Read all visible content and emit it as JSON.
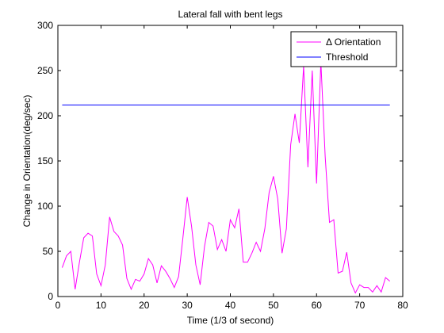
{
  "chart_data": {
    "type": "line",
    "title": "Lateral fall with bent legs",
    "xlabel": "Time (1/3 of second)",
    "ylabel": "Change in Orientation(deg/sec)",
    "xlim": [
      0,
      80
    ],
    "ylim": [
      0,
      300
    ],
    "xticks": [
      "0",
      "10",
      "20",
      "30",
      "40",
      "50",
      "60",
      "70",
      "80"
    ],
    "yticks": [
      "0",
      "50",
      "100",
      "150",
      "200",
      "250",
      "300"
    ],
    "legend_position": "top-right",
    "grid": false,
    "series": [
      {
        "name": "Δ Orientation",
        "color": "#ff00ff",
        "x": [
          1,
          2,
          3,
          4,
          5,
          6,
          7,
          8,
          9,
          10,
          11,
          12,
          13,
          14,
          15,
          16,
          17,
          18,
          19,
          20,
          21,
          22,
          23,
          24,
          25,
          26,
          27,
          28,
          29,
          30,
          31,
          32,
          33,
          34,
          35,
          36,
          37,
          38,
          39,
          40,
          41,
          42,
          43,
          44,
          45,
          46,
          47,
          48,
          49,
          50,
          51,
          52,
          53,
          54,
          55,
          56,
          57,
          58,
          59,
          60,
          61,
          62,
          63,
          64,
          65,
          66,
          67,
          68,
          69,
          70,
          71,
          72,
          73,
          74,
          75,
          76,
          77
        ],
        "y": [
          32,
          45,
          50,
          8,
          38,
          65,
          70,
          67,
          25,
          12,
          35,
          88,
          72,
          67,
          57,
          20,
          8,
          19,
          17,
          25,
          42,
          35,
          15,
          34,
          28,
          20,
          10,
          22,
          65,
          110,
          78,
          35,
          13,
          55,
          82,
          78,
          52,
          63,
          50,
          85,
          76,
          97,
          38,
          38,
          48,
          60,
          50,
          75,
          115,
          133,
          108,
          48,
          75,
          168,
          202,
          170,
          255,
          143,
          250,
          125,
          260,
          155,
          82,
          85,
          26,
          28,
          49,
          15,
          4,
          13,
          10,
          10,
          5,
          12,
          5,
          21,
          17
        ]
      },
      {
        "name": "Threshold",
        "color": "#0000ff",
        "x": [
          1,
          77
        ],
        "y": [
          212,
          212
        ]
      }
    ]
  }
}
